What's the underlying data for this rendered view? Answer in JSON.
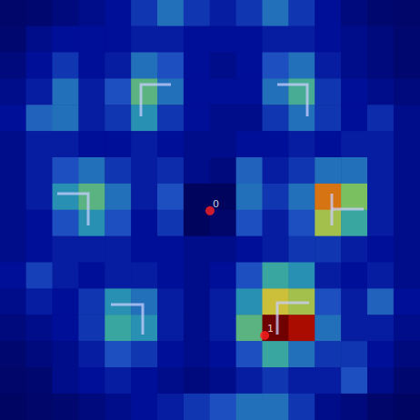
{
  "chart_data": {
    "type": "heatmap",
    "cells": [
      [
        0.05,
        0.06,
        0.08,
        0.1,
        0.12,
        0.2,
        0.3,
        0.2,
        0.15,
        0.2,
        0.3,
        0.2,
        0.12,
        0.08,
        0.06,
        0.05
      ],
      [
        0.06,
        0.1,
        0.12,
        0.12,
        0.12,
        0.15,
        0.15,
        0.12,
        0.12,
        0.12,
        0.15,
        0.15,
        0.12,
        0.1,
        0.08,
        0.06
      ],
      [
        0.08,
        0.12,
        0.2,
        0.12,
        0.15,
        0.3,
        0.25,
        0.12,
        0.1,
        0.12,
        0.25,
        0.3,
        0.15,
        0.1,
        0.08,
        0.06
      ],
      [
        0.1,
        0.15,
        0.3,
        0.15,
        0.25,
        0.45,
        0.3,
        0.12,
        0.12,
        0.12,
        0.3,
        0.42,
        0.2,
        0.12,
        0.1,
        0.08
      ],
      [
        0.12,
        0.28,
        0.3,
        0.15,
        0.2,
        0.35,
        0.2,
        0.12,
        0.1,
        0.1,
        0.2,
        0.3,
        0.2,
        0.12,
        0.18,
        0.1
      ],
      [
        0.1,
        0.15,
        0.15,
        0.12,
        0.12,
        0.15,
        0.12,
        0.1,
        0.1,
        0.12,
        0.12,
        0.15,
        0.12,
        0.15,
        0.15,
        0.1
      ],
      [
        0.1,
        0.15,
        0.25,
        0.3,
        0.2,
        0.15,
        0.18,
        0.1,
        0.08,
        0.28,
        0.15,
        0.2,
        0.3,
        0.3,
        0.15,
        0.1
      ],
      [
        0.1,
        0.15,
        0.35,
        0.45,
        0.3,
        0.15,
        0.25,
        0.03,
        0.03,
        0.3,
        0.2,
        0.3,
        0.7,
        0.5,
        0.15,
        0.1
      ],
      [
        0.1,
        0.12,
        0.25,
        0.35,
        0.25,
        0.12,
        0.2,
        0.03,
        0.05,
        0.25,
        0.15,
        0.25,
        0.55,
        0.4,
        0.15,
        0.1
      ],
      [
        0.1,
        0.12,
        0.15,
        0.15,
        0.15,
        0.12,
        0.12,
        0.1,
        0.1,
        0.12,
        0.15,
        0.2,
        0.2,
        0.15,
        0.12,
        0.1
      ],
      [
        0.12,
        0.22,
        0.15,
        0.12,
        0.15,
        0.15,
        0.12,
        0.1,
        0.12,
        0.25,
        0.4,
        0.35,
        0.15,
        0.12,
        0.15,
        0.1
      ],
      [
        0.1,
        0.15,
        0.12,
        0.2,
        0.35,
        0.3,
        0.15,
        0.1,
        0.15,
        0.35,
        0.6,
        0.55,
        0.25,
        0.15,
        0.28,
        0.12
      ],
      [
        0.08,
        0.1,
        0.12,
        0.2,
        0.4,
        0.35,
        0.15,
        0.1,
        0.15,
        0.45,
        1.0,
        0.85,
        0.3,
        0.15,
        0.15,
        0.1
      ],
      [
        0.06,
        0.08,
        0.1,
        0.15,
        0.25,
        0.2,
        0.12,
        0.1,
        0.12,
        0.25,
        0.4,
        0.3,
        0.2,
        0.2,
        0.12,
        0.08
      ],
      [
        0.05,
        0.06,
        0.1,
        0.12,
        0.15,
        0.12,
        0.1,
        0.08,
        0.1,
        0.15,
        0.2,
        0.15,
        0.15,
        0.25,
        0.1,
        0.06
      ],
      [
        0.04,
        0.05,
        0.06,
        0.08,
        0.1,
        0.12,
        0.15,
        0.2,
        0.25,
        0.3,
        0.3,
        0.2,
        0.1,
        0.08,
        0.05,
        0.04
      ]
    ],
    "color_range": [
      0,
      1
    ],
    "xlim": [
      0,
      16
    ],
    "ylim": [
      0,
      16
    ],
    "tick_labels": false,
    "points": [
      {
        "label": "0",
        "x": 8.0,
        "y": 8.03,
        "color": "#ff2020"
      },
      {
        "label": "1",
        "x": 10.08,
        "y": 12.78,
        "color": "#ff2020"
      }
    ]
  }
}
